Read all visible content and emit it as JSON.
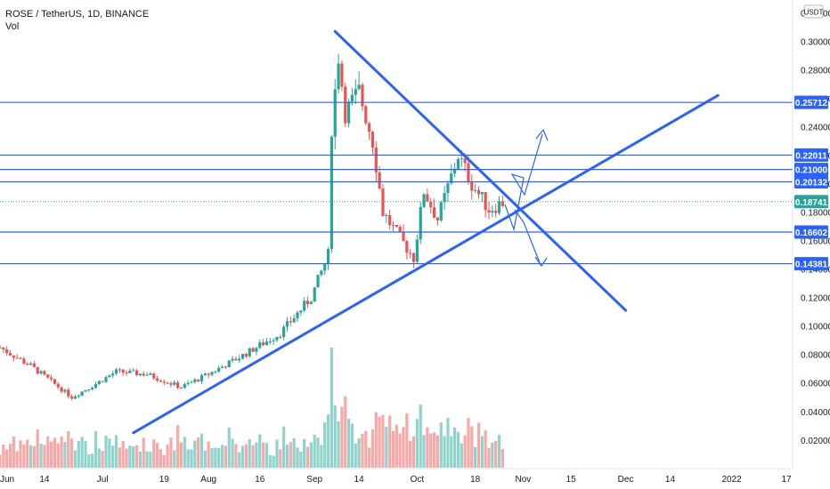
{
  "header": {
    "symbol_line": "ROSE / TetherUS, 1D, BINANCE",
    "volume_label": "Vol"
  },
  "currency_badge": "USDT",
  "colors": {
    "up": "#26a69a",
    "down": "#ef5350",
    "up_volume": "#8fd3cc",
    "down_volume": "#f7a9a7",
    "drawing": "#2962ff",
    "axis_text": "#131722",
    "grid": "#f0f3fa"
  },
  "chart_data": {
    "type": "candlestick",
    "symbol": "ROSE / TetherUS",
    "interval": "1D",
    "exchange": "BINANCE",
    "y_axis": {
      "range": [
        0.0,
        0.325
      ],
      "ticks": [
        "0.02000",
        "0.04000",
        "0.06000",
        "0.08000",
        "0.10000",
        "0.12000",
        "0.14000",
        "0.16000",
        "0.18000",
        "0.20000",
        "0.22000",
        "0.24000",
        "0.26000",
        "0.28000",
        "0.30000",
        "0.32000"
      ]
    },
    "x_axis": {
      "ticks": [
        {
          "label": "Jun",
          "date": "2021-06-01"
        },
        {
          "label": "14",
          "date": "2021-06-14"
        },
        {
          "label": "Jul",
          "date": "2021-07-01"
        },
        {
          "label": "19",
          "date": "2021-07-19"
        },
        {
          "label": "Aug",
          "date": "2021-08-01"
        },
        {
          "label": "16",
          "date": "2021-08-16"
        },
        {
          "label": "Sep",
          "date": "2021-09-01"
        },
        {
          "label": "14",
          "date": "2021-09-14"
        },
        {
          "label": "Oct",
          "date": "2021-10-01"
        },
        {
          "label": "18",
          "date": "2021-10-18"
        },
        {
          "label": "Nov",
          "date": "2021-11-01"
        },
        {
          "label": "15",
          "date": "2021-11-15"
        },
        {
          "label": "Dec",
          "date": "2021-12-01"
        },
        {
          "label": "14",
          "date": "2021-12-14"
        },
        {
          "label": "2022",
          "date": "2022-01-01"
        },
        {
          "label": "17",
          "date": "2022-01-17"
        }
      ]
    },
    "price_anchors": [
      {
        "date": "2021-06-01",
        "close": 0.085
      },
      {
        "date": "2021-06-10",
        "close": 0.072
      },
      {
        "date": "2021-06-22",
        "close": 0.05
      },
      {
        "date": "2021-06-28",
        "close": 0.058
      },
      {
        "date": "2021-07-05",
        "close": 0.068
      },
      {
        "date": "2021-07-14",
        "close": 0.066
      },
      {
        "date": "2021-07-24",
        "close": 0.057
      },
      {
        "date": "2021-07-31",
        "close": 0.065
      },
      {
        "date": "2021-08-10",
        "close": 0.078
      },
      {
        "date": "2021-08-22",
        "close": 0.095
      },
      {
        "date": "2021-08-31",
        "close": 0.12
      },
      {
        "date": "2021-09-05",
        "close": 0.15
      },
      {
        "date": "2021-09-06",
        "close": 0.24
      },
      {
        "date": "2021-09-08",
        "close": 0.29
      },
      {
        "date": "2021-09-10",
        "close": 0.25
      },
      {
        "date": "2021-09-14",
        "close": 0.265
      },
      {
        "date": "2021-09-18",
        "close": 0.23
      },
      {
        "date": "2021-09-21",
        "close": 0.18
      },
      {
        "date": "2021-09-25",
        "close": 0.165
      },
      {
        "date": "2021-09-30",
        "close": 0.148
      },
      {
        "date": "2021-10-03",
        "close": 0.195
      },
      {
        "date": "2021-10-07",
        "close": 0.175
      },
      {
        "date": "2021-10-13",
        "close": 0.22
      },
      {
        "date": "2021-10-17",
        "close": 0.2
      },
      {
        "date": "2021-10-22",
        "close": 0.182
      },
      {
        "date": "2021-10-26",
        "close": 0.187
      }
    ],
    "horizontal_levels": [
      {
        "value": 0.25712,
        "label": "0.25712"
      },
      {
        "value": 0.22011,
        "label": "0.22011"
      },
      {
        "value": 0.21,
        "label": "0.21000"
      },
      {
        "value": 0.20132,
        "label": "0.20132"
      },
      {
        "value": 0.16602,
        "label": "0.16602"
      },
      {
        "value": 0.14381,
        "label": "0.14381"
      }
    ],
    "last_price": {
      "value": 0.18741,
      "label": "0.18741"
    },
    "trendlines": [
      {
        "name": "descending-resistance",
        "from": {
          "date": "2021-09-07",
          "price": 0.307
        },
        "to": {
          "date": "2021-12-01",
          "price": 0.111
        }
      },
      {
        "name": "ascending-support",
        "from": {
          "date": "2021-07-10",
          "price": 0.025
        },
        "to": {
          "date": "2021-12-28",
          "price": 0.262
        }
      }
    ],
    "projection_arrows": [
      {
        "name": "upside-arrow",
        "direction": "up"
      },
      {
        "name": "downside-arrow",
        "direction": "down"
      }
    ],
    "grid": false,
    "volume_pane": true
  }
}
